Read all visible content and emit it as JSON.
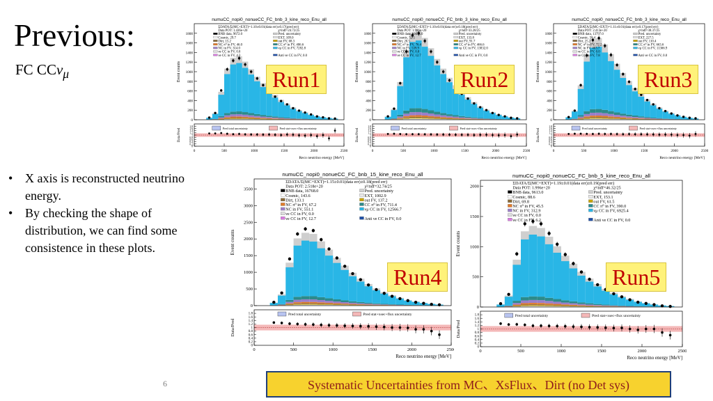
{
  "slide": {
    "title": "Previous:",
    "subtitle_prefix": "FC CC",
    "subtitle_nu": "ν",
    "subtitle_mu": "μ",
    "bullets": [
      "X axis is reconstructed neutrino energy.",
      "By checking the shape of distribution, we can find some consistence in these plots."
    ],
    "page_number": "6",
    "footer": "Systematic Uncertainties from MC、XsFlux、Dirt (no Det sys)"
  },
  "legend_common": {
    "items": [
      "Pred. uncertainty",
      "EXT",
      "Cosmic",
      "out FV",
      "Dirt",
      "NC π⁰ in FV",
      "CC π⁰ in FV",
      "NC in FV",
      "νμ CC in FV",
      "νe CC in FV",
      "Anti νe CC in FV"
    ],
    "ratio_total": "Pred total uncertainty",
    "ratio_stat": "Pred stat+xsec+flux uncertainty"
  },
  "colors": {
    "numu_cc": "#29b6e6",
    "nc": "#9b7ec8",
    "cc_pi0": "#2c8a8a",
    "nc_pi0": "#e07b2a",
    "dirt": "#8a6b3a",
    "out_fv": "#c9a400",
    "ext": "#e8e8e8",
    "pred_unc": "#cfcfcf",
    "ratio_band": "#f4b8b8",
    "data": "#000000",
    "run_label_text": "#c00000",
    "run_label_bg": "#fff27a",
    "footer_bg": "#f7d22e",
    "footer_text": "#8e1b1b"
  },
  "chart_data": [
    {
      "type": "bar",
      "run_label": "Run1",
      "title": "numuCC_nopi0_nonueCC_FC_bnb_3_kine_reco_Enu_all",
      "xlabel": "Reco neutrino energy [MeV]",
      "ylabel": "Event counts",
      "ratio_ylabel": "Data/Pred",
      "xlim": [
        0,
        2500
      ],
      "ylim": [
        0,
        2000
      ],
      "yticks": [
        0,
        200,
        400,
        600,
        800,
        1000,
        1200,
        1400,
        1600,
        1800
      ],
      "xticks": [
        0,
        500,
        1000,
        1500,
        2000,
        2500
      ],
      "ratio_ylim": [
        0,
        2
      ],
      "ratio_yticks": [
        "0",
        "0.2",
        "0.4",
        "0.6",
        "0.8",
        "1",
        "1.2",
        "1.4",
        "1.6",
        "1.8"
      ],
      "legend": [
        "ΣDATA/Σ(MC+EXT)=1.10±0.01(data err)±0.17(pred err)",
        "Data POT: 1.436e+20",
        "χ²/ndf=24.72/25",
        "BNB data, 9672.0",
        "Pred. uncertainty",
        "Cosmic, 29.7",
        "EXT, 109.0",
        "Dirt, 15.2",
        "out FV, 68.3",
        "NC π⁰ in FV, 46.0",
        "CC π⁰ in FV, 406.6",
        "NC in FV, 314.0",
        "νμ CC in FV, 7282.8",
        "νe CC in FV, 0.0",
        "",
        "νe CC in FV, 4.3",
        "Anti νe CC in FV, 0.0"
      ],
      "pred": [
        0,
        0,
        40,
        120,
        520,
        950,
        1150,
        1180,
        1080,
        940,
        800,
        680,
        560,
        460,
        370,
        300,
        230,
        180,
        140,
        100,
        70,
        50,
        35,
        22,
        0
      ],
      "data": [
        0,
        0,
        45,
        140,
        610,
        1050,
        1230,
        1280,
        1150,
        1000,
        860,
        720,
        600,
        480,
        390,
        320,
        240,
        190,
        150,
        110,
        70,
        50,
        30,
        25,
        0
      ],
      "ratio": [
        0,
        0,
        1.15,
        1.15,
        1.18,
        1.12,
        1.08,
        1.1,
        1.06,
        1.05,
        1.05,
        1.04,
        1.05,
        1.02,
        1.0,
        1.05,
        1.03,
        0.98,
        0.95,
        1.0,
        0.9,
        1.0,
        0.7,
        1.4,
        0
      ]
    },
    {
      "type": "bar",
      "run_label": "Run2",
      "title": "numuCC_nopi0_nonueCC_FC_bnb_3_kine_reco_Enu_all",
      "xlabel": "Reco neutrino energy [MeV]",
      "ylabel": "Event counts",
      "ratio_ylabel": "Data/Pred",
      "xlim": [
        0,
        2500
      ],
      "ylim": [
        0,
        2000
      ],
      "yticks": [
        0,
        200,
        400,
        600,
        800,
        1000,
        1200,
        1400,
        1600,
        1800
      ],
      "xticks": [
        0,
        500,
        1000,
        1500,
        2000,
        2500
      ],
      "ratio_ylim": [
        0,
        2
      ],
      "ratio_yticks": [
        "0",
        "0.2",
        "0.4",
        "0.6",
        "0.8",
        "1",
        "1.2",
        "1.4",
        "1.6",
        "1.8"
      ],
      "legend": [
        "ΣDATA/Σ(MC+EXT)=1.10±0.01(data err)±0.18(pred err)",
        "Data POT: 1.986e+20",
        "χ²/ndf=33.28/25",
        "BNB data, 10435.0",
        "Pred. uncertainty",
        "Cosmic, 52.5",
        "EXT, 133.8",
        "Dirt, 20.5",
        "out FV, 91.7",
        "NC π⁰ in FV, 76.4",
        "CC π⁰ in FV, 466.6",
        "NC in FV, 539.9",
        "νμ CC in FV, 13832.0",
        "νe CC in FV, 0.0",
        "",
        "νe CC in FV, 12.7",
        "Anti νe CC in FV, 0.0"
      ],
      "pred": [
        0,
        0,
        60,
        200,
        700,
        1300,
        1620,
        1650,
        1520,
        1330,
        1130,
        950,
        780,
        640,
        520,
        420,
        330,
        250,
        190,
        140,
        100,
        70,
        45,
        30,
        0
      ],
      "data": [
        0,
        0,
        70,
        230,
        760,
        1420,
        1760,
        1800,
        1640,
        1420,
        1200,
        1000,
        820,
        670,
        540,
        440,
        340,
        260,
        200,
        140,
        100,
        70,
        40,
        30,
        0
      ],
      "ratio": [
        0,
        0,
        1.1,
        1.12,
        1.09,
        1.08,
        1.08,
        1.08,
        1.07,
        1.06,
        1.05,
        1.05,
        1.04,
        1.03,
        1.02,
        1.02,
        1.0,
        1.02,
        1.03,
        1.0,
        0.98,
        1.0,
        0.9,
        1.05,
        0
      ]
    },
    {
      "type": "bar",
      "run_label": "Run3",
      "title": "numuCC_nopi0_nonueCC_FC_bnb_3_kine_reco_Enu_all",
      "xlabel": "Reco neutrino energy [MeV]",
      "ylabel": "Event counts",
      "ratio_ylabel": "Data/Pred",
      "xlim": [
        0,
        2500
      ],
      "ylim": [
        0,
        2000
      ],
      "yticks": [
        0,
        200,
        400,
        600,
        800,
        1000,
        1200,
        1400,
        1600,
        1800
      ],
      "xticks": [
        0,
        500,
        1000,
        1500,
        2000,
        2500
      ],
      "ratio_ylim": [
        0,
        2
      ],
      "ratio_yticks": [
        "0",
        "0.2",
        "0.4",
        "0.6",
        "0.8",
        "1",
        "1.2",
        "1.4",
        "1.6",
        "1.8"
      ],
      "legend": [
        "ΣDATA/Σ(MC+EXT)=1.11±0.01(data err)±0.17(pred err)",
        "Data POT: 2.413e+20",
        "χ²/ndf=38.37/25",
        "BNB data, 13797.0",
        "Pred. uncertainty",
        "Cosmic, 58.4",
        "EXT, 227.5",
        "Dirt, 25.2",
        "out FV, 110.4",
        "NC π⁰ in FV, 72.2",
        "CC π⁰ in FV, 663.6",
        "NC in FV, 463.7",
        "νμ CC in FV, 11366.9",
        "νe CC in FV, 0.0",
        "",
        "νe CC in FV, 7.8",
        "Anti νe CC in FV, 0.0"
      ],
      "pred": [
        0,
        0,
        50,
        170,
        640,
        1210,
        1500,
        1520,
        1400,
        1220,
        1040,
        870,
        720,
        590,
        480,
        380,
        300,
        230,
        170,
        125,
        90,
        60,
        40,
        25,
        0
      ],
      "data": [
        0,
        0,
        55,
        190,
        720,
        1340,
        1660,
        1700,
        1540,
        1350,
        1140,
        950,
        790,
        640,
        520,
        410,
        320,
        240,
        180,
        130,
        90,
        60,
        40,
        30,
        0
      ],
      "ratio": [
        0,
        0,
        1.1,
        1.12,
        1.12,
        1.11,
        1.1,
        1.12,
        1.1,
        1.1,
        1.09,
        1.08,
        1.09,
        1.08,
        1.08,
        1.07,
        1.06,
        1.04,
        1.05,
        1.04,
        1.0,
        1.0,
        0.95,
        1.1,
        0
      ]
    },
    {
      "type": "bar",
      "run_label": "Run4",
      "title": "numuCC_nopi0_nonueCC_FC_bnb_15_kine_reco_Enu_all",
      "xlabel": "Reco neutrino energy [MeV]",
      "ylabel": "Event counts",
      "ratio_ylabel": "Data/Pred",
      "xlim": [
        0,
        2500
      ],
      "ylim": [
        0,
        3800
      ],
      "yticks": [
        0,
        500,
        1000,
        1500,
        2000,
        2500,
        3000,
        3500
      ],
      "xticks": [
        0,
        500,
        1000,
        1500,
        2000,
        2500
      ],
      "ratio_ylim": [
        0,
        2
      ],
      "ratio_yticks": [
        "0",
        "0.2",
        "0.4",
        "0.6",
        "0.8",
        "1",
        "1.2",
        "1.4",
        "1.6",
        "1.8"
      ],
      "legend": [
        "ΣDATA/Σ(MC+EXT)=1.15±0.01(data err)±0.18(pred err)",
        "Data POT: 2.518e+20",
        "χ²/ndf=32.74/25",
        "BNB data, 16768.0",
        "Pred. uncertainty",
        "Cosmic, 143.6",
        "EXT, 1002.9",
        "Dirt, 133.1",
        "out FV, 137.2",
        "NC π⁰ in FV, 67.2",
        "CC π⁰ in FV, 711.4",
        "NC in FV, 551.1",
        "νμ CC in FV, 12566.7",
        "νe CC in FV, 0.0",
        "",
        "νe CC in FV, 12.7",
        "Anti νe CC in FV, 0.0"
      ],
      "pred": [
        0,
        0,
        80,
        300,
        1150,
        1800,
        1950,
        1920,
        1720,
        1500,
        1280,
        1070,
        880,
        720,
        580,
        460,
        360,
        280,
        210,
        150,
        110,
        75,
        50,
        30,
        0
      ],
      "data": [
        0,
        0,
        100,
        380,
        1400,
        2150,
        2300,
        2250,
        1980,
        1700,
        1430,
        1180,
        960,
        780,
        620,
        480,
        370,
        280,
        210,
        150,
        100,
        70,
        40,
        25,
        0
      ],
      "ratio": [
        0,
        0,
        1.28,
        1.26,
        1.22,
        1.2,
        1.18,
        1.17,
        1.15,
        1.13,
        1.12,
        1.1,
        1.09,
        1.08,
        1.07,
        1.05,
        1.03,
        1.0,
        1.0,
        0.98,
        0.9,
        0.9,
        0.8,
        0.6,
        0
      ]
    },
    {
      "type": "bar",
      "run_label": "Run5",
      "title": "numuCC_nopi0_nonueCC_FC_bnb_5_kine_reco_Enu_all",
      "xlabel": "Reco neutrino energy [MeV]",
      "ylabel": "Event counts",
      "ratio_ylabel": "Data/Pred",
      "xlim": [
        0,
        2500
      ],
      "ylim": [
        0,
        2100
      ],
      "yticks": [
        0,
        500,
        1000,
        1500,
        2000
      ],
      "xticks": [
        0,
        500,
        1000,
        1500,
        2000,
        2500
      ],
      "ratio_ylim": [
        0,
        2
      ],
      "ratio_yticks": [
        "0",
        "0.2",
        "0.4",
        "0.6",
        "0.8",
        "1",
        "1.2",
        "1.4",
        "1.6",
        "1.8"
      ],
      "legend": [
        "ΣDATA/Σ(MC+EXT)=1.19±0.01(data err)±0.19(pred err)",
        "Data POT: 1.996e+20",
        "χ²/ndf=46.32/25",
        "BNB data, 9613.0",
        "Pred. uncertainty",
        "Cosmic, 88.6",
        "EXT, 153.1",
        "Dirt, 69.8",
        "out FV, 61.5",
        "NC π⁰ in FV, 45.5",
        "CC π⁰ in FV, 390.0",
        "NC in FV, 312.9",
        "νμ CC in FV, 6925.4",
        "νe CC in FV, 0.0",
        "",
        "νe CC in FV, 6.2",
        "Anti νe CC in FV, 0.0"
      ],
      "pred": [
        0,
        0,
        40,
        170,
        700,
        1120,
        1200,
        1170,
        1040,
        900,
        760,
        640,
        520,
        420,
        340,
        270,
        210,
        160,
        120,
        85,
        60,
        40,
        25,
        15,
        0
      ],
      "data": [
        0,
        0,
        55,
        210,
        880,
        1380,
        1420,
        1380,
        1220,
        1040,
        870,
        720,
        580,
        460,
        370,
        290,
        220,
        170,
        120,
        80,
        60,
        40,
        20,
        10,
        0
      ],
      "ratio": [
        0,
        0,
        1.3,
        1.25,
        1.26,
        1.23,
        1.18,
        1.18,
        1.17,
        1.16,
        1.15,
        1.13,
        1.12,
        1.1,
        1.09,
        1.07,
        1.05,
        1.06,
        1.0,
        0.95,
        1.0,
        1.0,
        0.8,
        0.65,
        0
      ]
    }
  ]
}
